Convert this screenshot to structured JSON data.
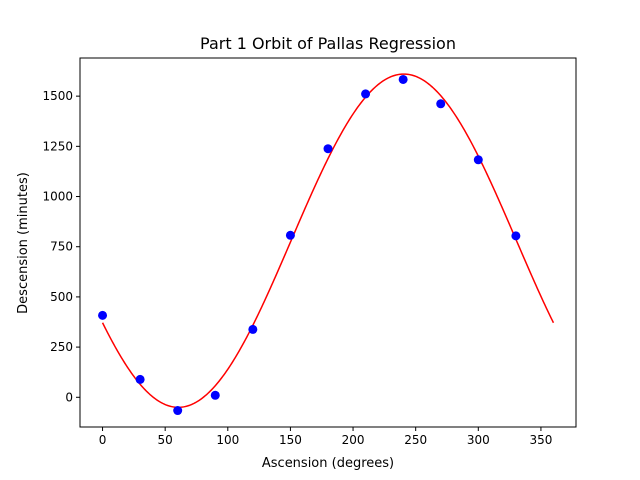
{
  "chart_data": {
    "type": "scatter",
    "title": "Part 1 Orbit of Pallas Regression",
    "xlabel": "Ascension (degrees)",
    "ylabel": "Descension (minutes)",
    "xlim": [
      -18,
      378
    ],
    "ylim": [
      -148,
      1690
    ],
    "xticks": [
      0,
      50,
      100,
      150,
      200,
      250,
      300,
      350
    ],
    "yticks": [
      0,
      250,
      500,
      750,
      1000,
      1250,
      1500
    ],
    "grid": false,
    "series": [
      {
        "kind": "scatter",
        "color": "#0000ff",
        "x": [
          0,
          30,
          60,
          90,
          120,
          150,
          180,
          210,
          240,
          270,
          300,
          330
        ],
        "y": [
          408,
          89,
          -66,
          10,
          338,
          807,
          1238,
          1511,
          1583,
          1462,
          1183,
          804
        ]
      },
      {
        "kind": "line",
        "color": "#ff0000",
        "model": {
          "form": "offset + amplitude * sin(x + phase)",
          "offset": 780,
          "amplitude": 830,
          "phase_degrees": -150.5,
          "x_range": [
            0,
            360
          ]
        }
      }
    ]
  }
}
